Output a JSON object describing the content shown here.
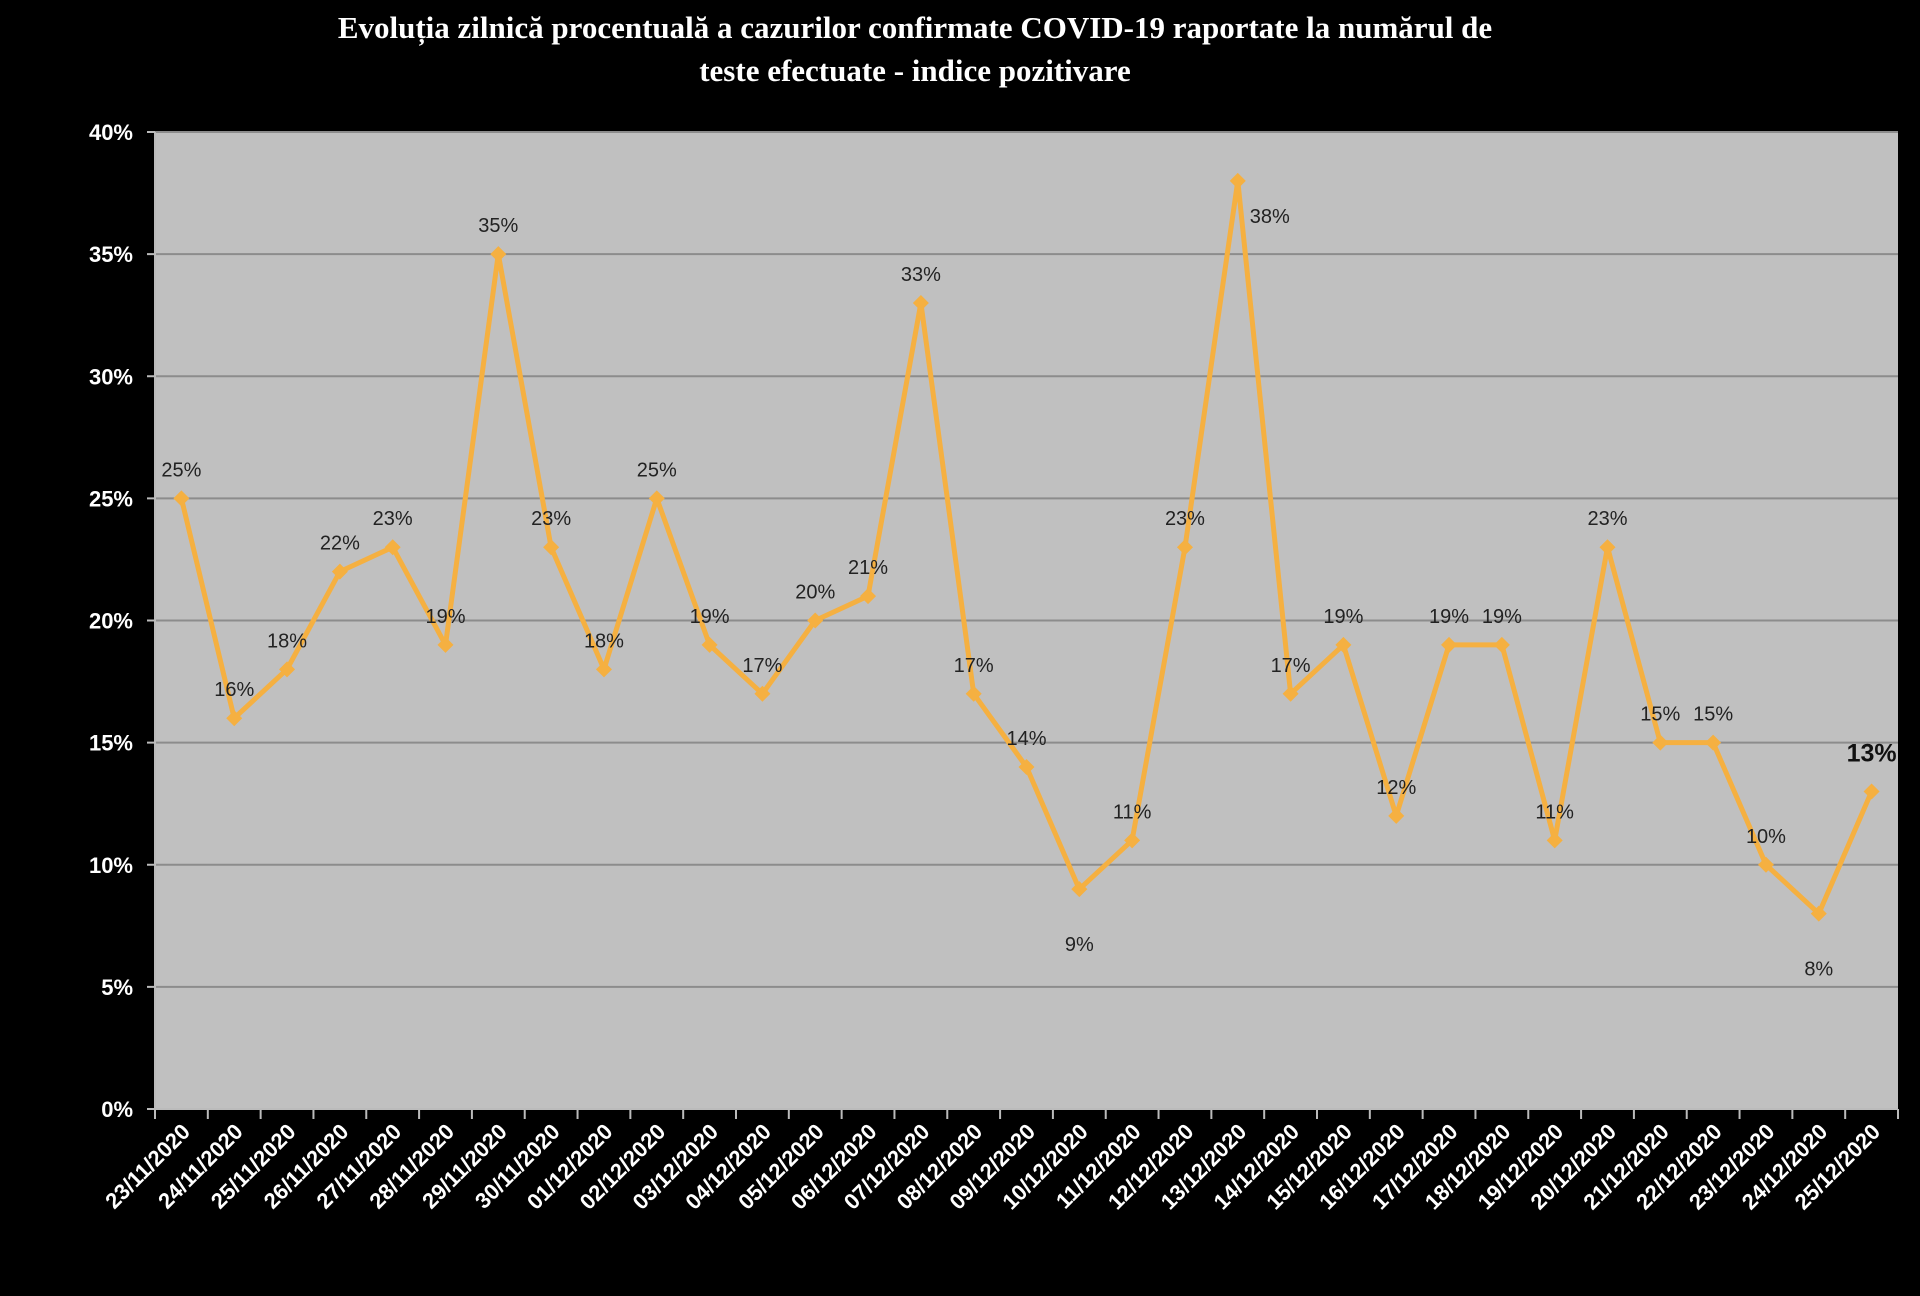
{
  "title_lines": [
    "Evoluția zilnică procentuală a cazurilor confirmate COVID-19 raportate la numărul de",
    "teste efectuate - indice pozitivare"
  ],
  "colors": {
    "background": "#000000",
    "plot_area": "#c0c0c0",
    "gridline": "#8c8c8c",
    "series": "#f5b041",
    "text": "#ffffff"
  },
  "chart_data": {
    "type": "line",
    "title": "Evoluția zilnică procentuală a cazurilor confirmate COVID-19 raportate la numărul de teste efectuate - indice pozitivare",
    "xlabel": "",
    "ylabel": "",
    "ylim": [
      0,
      40
    ],
    "y_unit": "%",
    "y_ticks": [
      "0%",
      "5%",
      "10%",
      "15%",
      "20%",
      "25%",
      "30%",
      "35%",
      "40%"
    ],
    "grid": true,
    "legend": "none",
    "marker": "diamond",
    "categories": [
      "23/11/2020",
      "24/11/2020",
      "25/11/2020",
      "26/11/2020",
      "27/11/2020",
      "28/11/2020",
      "29/11/2020",
      "30/11/2020",
      "01/12/2020",
      "02/12/2020",
      "03/12/2020",
      "04/12/2020",
      "05/12/2020",
      "06/12/2020",
      "07/12/2020",
      "08/12/2020",
      "09/12/2020",
      "10/12/2020",
      "11/12/2020",
      "12/12/2020",
      "13/12/2020",
      "14/12/2020",
      "15/12/2020",
      "16/12/2020",
      "17/12/2020",
      "18/12/2020",
      "19/12/2020",
      "20/12/2020",
      "21/12/2020",
      "22/12/2020",
      "23/12/2020",
      "24/12/2020",
      "25/12/2020"
    ],
    "values": [
      25,
      16,
      18,
      22,
      23,
      19,
      35,
      23,
      18,
      25,
      19,
      17,
      20,
      21,
      33,
      17,
      14,
      9,
      11,
      23,
      38,
      17,
      19,
      12,
      19,
      19,
      11,
      23,
      15,
      15,
      10,
      8,
      13
    ],
    "data_labels": [
      "25%",
      "16%",
      "18%",
      "22%",
      "23%",
      "19%",
      "35%",
      "23%",
      "18%",
      "25%",
      "19%",
      "17%",
      "20%",
      "21%",
      "33%",
      "17%",
      "14%",
      "9%",
      "11%",
      "23%",
      "38%",
      "17%",
      "19%",
      "12%",
      "19%",
      "19%",
      "11%",
      "23%",
      "15%",
      "15%",
      "10%",
      "8%",
      "13%"
    ],
    "emphasized_label_index": 32
  }
}
